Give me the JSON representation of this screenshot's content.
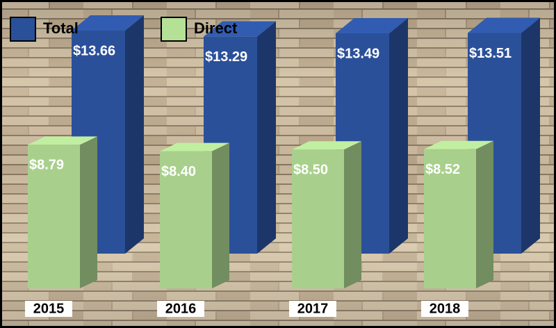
{
  "chart_data": {
    "type": "bar3d",
    "categories": [
      "2015",
      "2016",
      "2017",
      "2018"
    ],
    "series": [
      {
        "name": "Total",
        "color": "#2b509a",
        "values": [
          13.66,
          13.29,
          13.49,
          13.51
        ],
        "value_labels": [
          "$13.66",
          "$13.29",
          "$13.49",
          "$13.51"
        ]
      },
      {
        "name": "Direct",
        "color": "#a8d08c",
        "values": [
          8.79,
          8.4,
          8.5,
          8.52
        ],
        "value_labels": [
          "$8.79",
          "$8.40",
          "$8.50",
          "$8.52"
        ]
      }
    ],
    "legend": "top-left"
  }
}
